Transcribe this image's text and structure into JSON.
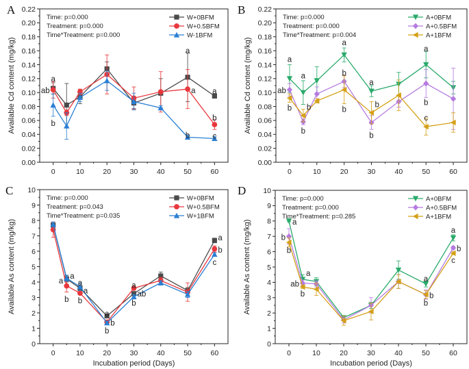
{
  "chart_data": [
    {
      "type": "line",
      "panel_label": "A",
      "ylabel": "Available Cd content (mg/kg)",
      "xlabel": "",
      "x": [
        0,
        5,
        10,
        20,
        30,
        40,
        50,
        60
      ],
      "xticks": [
        0,
        10,
        20,
        30,
        40,
        50,
        60
      ],
      "xlim": [
        -5,
        65
      ],
      "ylim": [
        0,
        0.22
      ],
      "yticks": [
        0,
        0.02,
        0.04,
        0.06,
        0.08,
        0.1,
        0.12,
        0.14,
        0.16,
        0.18,
        0.2,
        0.22
      ],
      "ydecimals": 2,
      "stats": [
        "Time: p=0.000",
        "Treatment: p=0.000",
        "Time*Treatment: p=0.000"
      ],
      "legend_position": "top-right",
      "series": [
        {
          "name": "W+0BFM",
          "color": "#4a4a4a",
          "marker": "square",
          "values": [
            0.106,
            0.082,
            0.094,
            0.134,
            0.085,
            0.099,
            0.122,
            0.095
          ],
          "errors": [
            0.008,
            0.031,
            0.01,
            0.01,
            0.008,
            0.021,
            0.035,
            0.003
          ]
        },
        {
          "name": "W+0.5BFM",
          "color": "#e8383d",
          "marker": "circle",
          "values": [
            0.104,
            0.071,
            0.101,
            0.126,
            0.092,
            0.101,
            0.105,
            0.054
          ],
          "errors": [
            0.012,
            0.004,
            0.004,
            0.028,
            0.016,
            0.029,
            0.028,
            0.007
          ]
        },
        {
          "name": "W-1BFM",
          "color": "#2a7fd4",
          "marker": "triangle-up",
          "values": [
            0.082,
            0.052,
            0.093,
            0.117,
            0.087,
            0.078,
            0.036,
            0.034
          ],
          "errors": [
            0.016,
            0.019,
            0.006,
            0.014,
            0.012,
            0.003,
            0.003,
            0.003
          ]
        }
      ],
      "annotations": [
        {
          "text": "a",
          "x": 0,
          "y": 0.12,
          "pos": "c"
        },
        {
          "text": "ab",
          "x": 0,
          "y": 0.103,
          "pos": "l"
        },
        {
          "text": "b",
          "x": 0,
          "y": 0.056,
          "pos": "c"
        },
        {
          "text": "a",
          "x": 50,
          "y": 0.16,
          "pos": "c"
        },
        {
          "text": "a",
          "x": 50,
          "y": 0.103,
          "pos": "r"
        },
        {
          "text": "b",
          "x": 50,
          "y": 0.039,
          "pos": "c"
        },
        {
          "text": "a",
          "x": 60,
          "y": 0.102,
          "pos": "c"
        },
        {
          "text": "b",
          "x": 60,
          "y": 0.064,
          "pos": "c"
        },
        {
          "text": "c",
          "x": 60,
          "y": 0.038,
          "pos": "c"
        }
      ]
    },
    {
      "type": "line",
      "panel_label": "B",
      "ylabel": "Available Cd content (mg/kg)",
      "xlabel": "",
      "x": [
        0,
        5,
        10,
        20,
        30,
        40,
        50,
        60
      ],
      "xticks": [
        0,
        10,
        20,
        30,
        40,
        50,
        60
      ],
      "xlim": [
        -5,
        65
      ],
      "ylim": [
        0,
        0.22
      ],
      "yticks": [
        0,
        0.02,
        0.04,
        0.06,
        0.08,
        0.1,
        0.12,
        0.14,
        0.16,
        0.18,
        0.2,
        0.22
      ],
      "ydecimals": 2,
      "stats": [
        "Time: p=0.000",
        "Treatment: p=0.000",
        "Time*Treatment: p=0.004"
      ],
      "legend_position": "top-right",
      "series": [
        {
          "name": "A+0BFM",
          "color": "#2aaa6a",
          "marker": "triangle-down",
          "values": [
            0.12,
            0.1,
            0.117,
            0.154,
            0.102,
            0.112,
            0.14,
            0.107
          ],
          "errors": [
            0.02,
            0.017,
            0.02,
            0.01,
            0.008,
            0.017,
            0.019,
            0.009
          ]
        },
        {
          "name": "A+0.5BFM",
          "color": "#b57be0",
          "marker": "diamond",
          "values": [
            0.104,
            0.058,
            0.098,
            0.116,
            0.057,
            0.087,
            0.113,
            0.091
          ],
          "errors": [
            0.009,
            0.004,
            0.01,
            0.009,
            0.01,
            0.008,
            0.02,
            0.044
          ]
        },
        {
          "name": "A+1BFM",
          "color": "#d4a017",
          "marker": "triangle-left",
          "values": [
            0.092,
            0.067,
            0.088,
            0.104,
            0.071,
            0.096,
            0.051,
            0.057
          ],
          "errors": [
            0.006,
            0.009,
            0.003,
            0.02,
            0.016,
            0.022,
            0.012,
            0.014
          ]
        }
      ],
      "annotations": [
        {
          "text": "a",
          "x": 0,
          "y": 0.148,
          "pos": "c"
        },
        {
          "text": "ab",
          "x": 0,
          "y": 0.103,
          "pos": "l"
        },
        {
          "text": "b",
          "x": 0,
          "y": 0.078,
          "pos": "c"
        },
        {
          "text": "a",
          "x": 5,
          "y": 0.124,
          "pos": "c"
        },
        {
          "text": "b",
          "x": 5,
          "y": 0.079,
          "pos": "r"
        },
        {
          "text": "b",
          "x": 5,
          "y": 0.045,
          "pos": "c"
        },
        {
          "text": "a",
          "x": 20,
          "y": 0.172,
          "pos": "c"
        },
        {
          "text": "b",
          "x": 20,
          "y": 0.128,
          "pos": "c"
        },
        {
          "text": "b",
          "x": 20,
          "y": 0.076,
          "pos": "c"
        },
        {
          "text": "a",
          "x": 30,
          "y": 0.115,
          "pos": "c"
        },
        {
          "text": "b",
          "x": 30,
          "y": 0.083,
          "pos": "r"
        },
        {
          "text": "b",
          "x": 30,
          "y": 0.039,
          "pos": "c"
        },
        {
          "text": "a",
          "x": 50,
          "y": 0.163,
          "pos": "c"
        },
        {
          "text": "b",
          "x": 50,
          "y": 0.086,
          "pos": "c"
        },
        {
          "text": "c",
          "x": 50,
          "y": 0.064,
          "pos": "c"
        }
      ]
    },
    {
      "type": "line",
      "panel_label": "C",
      "ylabel": "Available As content (mg/kg)",
      "xlabel": "Incubation period (Days)",
      "x": [
        0,
        5,
        10,
        20,
        30,
        40,
        50,
        60
      ],
      "xticks": [
        0,
        10,
        20,
        30,
        40,
        50,
        60
      ],
      "xlim": [
        -5,
        65
      ],
      "ylim": [
        0,
        10
      ],
      "yticks": [
        0,
        1,
        2,
        3,
        4,
        5,
        6,
        7,
        8,
        9,
        10
      ],
      "ydecimals": 0,
      "stats": [
        "Time: p=0.000",
        "Treatment: p=0.043",
        "Time*Treatment: p=0.035"
      ],
      "legend_position": "top-right",
      "series": [
        {
          "name": "W+0BFM",
          "color": "#4a4a4a",
          "marker": "square",
          "values": [
            7.7,
            4.2,
            3.6,
            1.8,
            3.25,
            4.4,
            3.45,
            6.7
          ],
          "errors": [
            0.1,
            0.2,
            0.15,
            0.08,
            0.1,
            0.25,
            0.2,
            0.15
          ]
        },
        {
          "name": "W+0.5BFM",
          "color": "#e8383d",
          "marker": "circle",
          "values": [
            7.4,
            3.75,
            3.28,
            1.4,
            3.6,
            4.1,
            3.35,
            6.15
          ],
          "errors": [
            0.5,
            0.4,
            0.1,
            0.1,
            0.1,
            0.2,
            0.6,
            0.2
          ]
        },
        {
          "name": "W+1BFM",
          "color": "#2a7fd4",
          "marker": "triangle-up",
          "values": [
            7.75,
            4.25,
            3.7,
            1.35,
            3.05,
            3.95,
            3.2,
            5.8
          ],
          "errors": [
            0.15,
            0.2,
            0.25,
            0.1,
            0.15,
            0.15,
            0.2,
            0.1
          ]
        }
      ],
      "annotations": [
        {
          "text": "a",
          "x": 5,
          "y": 4.4,
          "pos": "r"
        },
        {
          "text": "a",
          "x": 5,
          "y": 4.1,
          "pos": "l"
        },
        {
          "text": "b",
          "x": 5,
          "y": 2.9,
          "pos": "c"
        },
        {
          "text": "a",
          "x": 10,
          "y": 3.95,
          "pos": "c"
        },
        {
          "text": "a",
          "x": 10,
          "y": 3.45,
          "pos": "r"
        },
        {
          "text": "b",
          "x": 10,
          "y": 2.8,
          "pos": "c"
        },
        {
          "text": "a",
          "x": 20,
          "y": 1.95,
          "pos": "c"
        },
        {
          "text": "b",
          "x": 20,
          "y": 1.35,
          "pos": "r"
        },
        {
          "text": "b",
          "x": 20,
          "y": 0.85,
          "pos": "c"
        },
        {
          "text": "a",
          "x": 30,
          "y": 3.8,
          "pos": "c"
        },
        {
          "text": "ab",
          "x": 30,
          "y": 3.25,
          "pos": "r"
        },
        {
          "text": "b",
          "x": 30,
          "y": 2.65,
          "pos": "c"
        },
        {
          "text": "a",
          "x": 60,
          "y": 6.9,
          "pos": "r"
        },
        {
          "text": "b",
          "x": 60,
          "y": 6.1,
          "pos": "r"
        },
        {
          "text": "c",
          "x": 60,
          "y": 5.3,
          "pos": "c"
        }
      ]
    },
    {
      "type": "line",
      "panel_label": "D",
      "ylabel": "Available As content (mg/kg)",
      "xlabel": "Incubation period (Days)",
      "x": [
        0,
        5,
        10,
        20,
        30,
        40,
        50,
        60
      ],
      "xticks": [
        0,
        10,
        20,
        30,
        40,
        50,
        60
      ],
      "xlim": [
        -5,
        65
      ],
      "ylim": [
        0,
        10
      ],
      "yticks": [
        0,
        1,
        2,
        3,
        4,
        5,
        6,
        7,
        8,
        9,
        10
      ],
      "ydecimals": 0,
      "stats": [
        "Time: p=0.000",
        "Treatment: p=0.000",
        "Time*Treatment: p=0.285"
      ],
      "legend_position": "top-right",
      "series": [
        {
          "name": "A+0BFM",
          "color": "#2aaa6a",
          "marker": "triangle-down",
          "values": [
            8.0,
            4.2,
            4.05,
            1.7,
            2.5,
            4.8,
            3.9,
            6.9
          ],
          "errors": [
            0.05,
            0.3,
            0.25,
            0.1,
            0.2,
            0.6,
            0.2,
            0.2
          ]
        },
        {
          "name": "A+0.5BFM",
          "color": "#b57be0",
          "marker": "diamond",
          "values": [
            7.0,
            3.95,
            3.9,
            1.55,
            2.5,
            4.05,
            3.2,
            6.25
          ],
          "errors": [
            0.5,
            0.2,
            0.2,
            0.2,
            0.5,
            0.45,
            0.3,
            0.1
          ]
        },
        {
          "name": "A+1BFM",
          "color": "#d4a017",
          "marker": "triangle-left",
          "values": [
            6.6,
            3.7,
            3.55,
            1.5,
            2.1,
            4.05,
            3.2,
            5.9
          ],
          "errors": [
            0.3,
            0.1,
            0.4,
            0.3,
            0.55,
            0.45,
            0.25,
            0.1
          ]
        }
      ],
      "annotations": [
        {
          "text": "a",
          "x": 0,
          "y": 7.95,
          "pos": "r"
        },
        {
          "text": "b",
          "x": 0,
          "y": 6.95,
          "pos": "l"
        },
        {
          "text": "b",
          "x": 0,
          "y": 6.1,
          "pos": "c"
        },
        {
          "text": "a",
          "x": 5,
          "y": 4.6,
          "pos": "r"
        },
        {
          "text": "ab",
          "x": 5,
          "y": 3.9,
          "pos": "l"
        },
        {
          "text": "b",
          "x": 5,
          "y": 3.25,
          "pos": "c"
        },
        {
          "text": "a",
          "x": 50,
          "y": 4.25,
          "pos": "c"
        },
        {
          "text": "b",
          "x": 50,
          "y": 3.15,
          "pos": "r"
        },
        {
          "text": "b",
          "x": 50,
          "y": 2.65,
          "pos": "c"
        },
        {
          "text": "a",
          "x": 60,
          "y": 7.4,
          "pos": "c"
        },
        {
          "text": "b",
          "x": 60,
          "y": 6.2,
          "pos": "r"
        },
        {
          "text": "c",
          "x": 60,
          "y": 5.45,
          "pos": "c"
        }
      ]
    }
  ]
}
